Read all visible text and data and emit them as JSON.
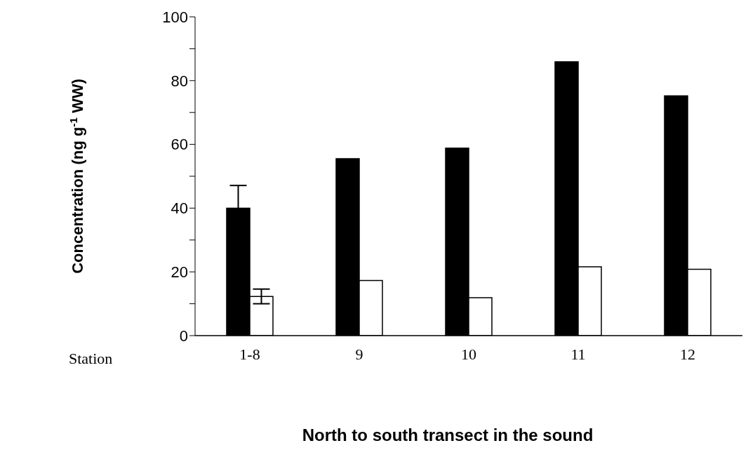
{
  "chart_data": {
    "type": "bar",
    "xlabel": "North to south transect in the sound",
    "ylabel": "Concentration (ng g$^{-1}$ WW)",
    "annotations": [
      "Station"
    ],
    "categories": [
      "1-8",
      "9",
      "10",
      "11",
      "12"
    ],
    "series": [
      {
        "color": "#000000",
        "values": [
          40.0,
          55.5,
          58.8,
          85.9,
          75.2
        ],
        "errors": [
          7.1,
          null,
          null,
          null,
          null
        ]
      },
      {
        "color": "#ffffff",
        "values": [
          12.3,
          17.3,
          11.9,
          21.6,
          20.8
        ],
        "errors": [
          2.3,
          null,
          null,
          null,
          null
        ]
      }
    ],
    "ylim": [
      0,
      100
    ],
    "yticks": [
      0,
      {
        "value": 10,
        "label": null
      },
      20,
      {
        "value": 30,
        "label": null
      },
      40,
      {
        "value": 50,
        "label": null
      },
      60,
      {
        "value": 70,
        "label": null
      },
      80,
      {
        "value": 90,
        "label": null
      },
      100
    ]
  }
}
